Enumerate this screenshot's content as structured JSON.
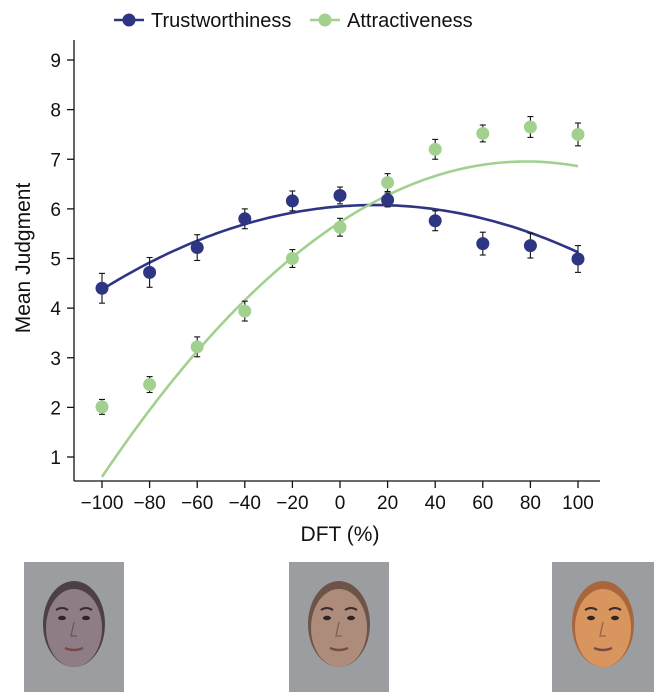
{
  "chart_data": {
    "type": "scatter",
    "xlabel": "DFT (%)",
    "ylabel": "Mean Judgment",
    "xlim": [
      -110,
      110
    ],
    "ylim": [
      0.5,
      9.5
    ],
    "x_ticks": [
      -100,
      -80,
      -60,
      -40,
      -20,
      0,
      20,
      40,
      60,
      80,
      100
    ],
    "x_tick_labels": [
      "−100",
      "−80",
      "−60",
      "−40",
      "−20",
      "0",
      "20",
      "40",
      "60",
      "80",
      "100"
    ],
    "y_ticks": [
      1,
      2,
      3,
      4,
      5,
      6,
      7,
      8,
      9
    ],
    "y_tick_labels": [
      "1",
      "2",
      "3",
      "4",
      "5",
      "6",
      "7",
      "8",
      "9"
    ],
    "grid": false,
    "legend_position": "top",
    "x": [
      -100,
      -80,
      -60,
      -40,
      -20,
      0,
      20,
      40,
      60,
      80,
      100
    ],
    "series": [
      {
        "name": "Trustworthiness",
        "color": "#2e3583",
        "values": [
          4.4,
          4.72,
          5.22,
          5.8,
          6.16,
          6.27,
          6.18,
          5.76,
          5.3,
          5.26,
          4.99
        ],
        "errors": [
          0.3,
          0.3,
          0.26,
          0.2,
          0.2,
          0.17,
          0.14,
          0.2,
          0.23,
          0.25,
          0.27
        ],
        "fit": [
          -0.00013,
          0.00375,
          6.05
        ]
      },
      {
        "name": "Attractiveness",
        "color": "#a2d18f",
        "values": [
          2.01,
          2.46,
          3.22,
          3.94,
          5.0,
          5.63,
          6.53,
          7.2,
          7.52,
          7.65,
          7.5
        ],
        "errors": [
          0.15,
          0.16,
          0.2,
          0.2,
          0.18,
          0.18,
          0.18,
          0.2,
          0.17,
          0.21,
          0.23
        ],
        "fit": [
          -0.0002,
          0.0313,
          5.73
        ]
      }
    ]
  },
  "face_panels": [
    {
      "name": "face-left-icon",
      "skin": "#8e7d86",
      "hair": "#4c4046"
    },
    {
      "name": "face-middle-icon",
      "skin": "#ae8c7b",
      "hair": "#6d5449"
    },
    {
      "name": "face-right-icon",
      "skin": "#d9955e",
      "hair": "#a8663a"
    }
  ]
}
